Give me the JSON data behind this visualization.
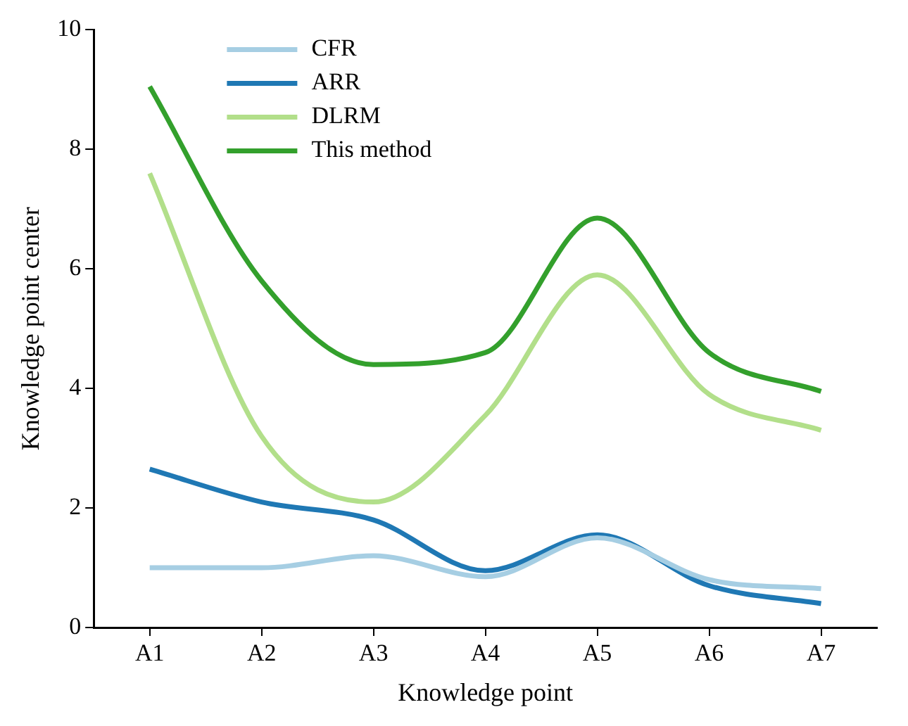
{
  "chart_data": {
    "type": "line",
    "xlabel": "Knowledge point",
    "ylabel": "Knowledge point center",
    "categories": [
      "A1",
      "A2",
      "A3",
      "A4",
      "A5",
      "A6",
      "A7"
    ],
    "series": [
      {
        "name": "CFR",
        "color": "#a6cee3",
        "values": [
          1.0,
          1.0,
          1.2,
          0.85,
          1.5,
          0.8,
          0.65
        ]
      },
      {
        "name": "ARR",
        "color": "#1f78b4",
        "values": [
          2.65,
          2.1,
          1.8,
          0.95,
          1.55,
          0.7,
          0.4
        ]
      },
      {
        "name": "DLRM",
        "color": "#b2df8a",
        "values": [
          7.6,
          3.2,
          2.1,
          3.55,
          5.9,
          3.9,
          3.3
        ]
      },
      {
        "name": "This method",
        "color": "#33a02c",
        "values": [
          9.05,
          5.8,
          4.4,
          4.6,
          6.85,
          4.6,
          3.95
        ]
      }
    ],
    "ylim": [
      0,
      10
    ],
    "yticks": [
      0,
      2,
      4,
      6,
      8,
      10
    ],
    "grid": false,
    "legend": "top",
    "marker": "none",
    "line_style": "solid"
  }
}
